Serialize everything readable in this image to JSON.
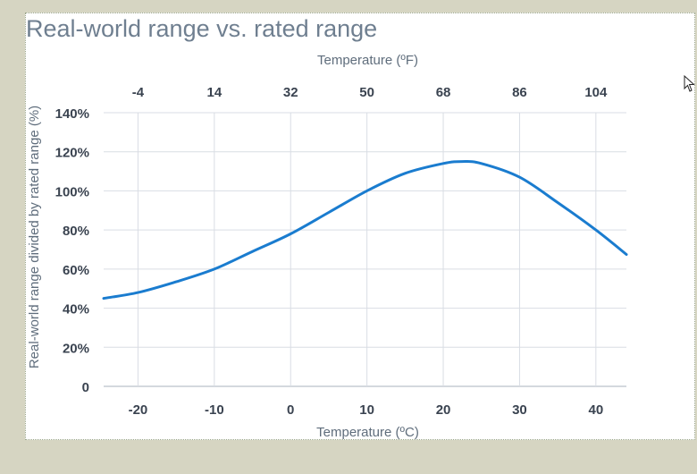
{
  "chart_data": {
    "type": "line",
    "title": "Real-world range vs. rated range",
    "xlabel": "Temperature (ºC)",
    "x2label": "Temperature (ºF)",
    "ylabel": "Real-world range divided by rated range (%)",
    "xlim": [
      -24.5,
      44
    ],
    "ylim": [
      0,
      140
    ],
    "x_ticks": [
      -20,
      -10,
      0,
      10,
      20,
      30,
      40
    ],
    "x_tick_labels": [
      "-20",
      "-10",
      "0",
      "10",
      "20",
      "30",
      "40"
    ],
    "x2_tick_labels": [
      "-4",
      "14",
      "32",
      "50",
      "68",
      "86",
      "104"
    ],
    "y_ticks": [
      0,
      20,
      40,
      60,
      80,
      100,
      120,
      140
    ],
    "y_tick_labels": [
      "0",
      "20%",
      "40%",
      "60%",
      "80%",
      "100%",
      "120%",
      "140%"
    ],
    "grid": true,
    "line_color": "#1a7ccf",
    "series": [
      {
        "x": [
          -24.5,
          -20,
          -15,
          -10,
          -5,
          0,
          5,
          10,
          15,
          20,
          22.5,
          25,
          30,
          35,
          40,
          44
        ],
        "values": [
          45,
          48,
          53.5,
          60,
          69,
          78,
          89,
          100,
          109,
          114,
          115,
          114,
          107,
          94,
          80,
          67.5
        ]
      }
    ]
  },
  "colors": {
    "background": "#d6d5c2",
    "panel": "#ffffff",
    "grid": "#d9dde4",
    "axis": "#c5cbd3",
    "tick_text": "#3a4350",
    "label_text": "#5f6d7c"
  },
  "cursor_icon": "mouse-pointer-icon"
}
